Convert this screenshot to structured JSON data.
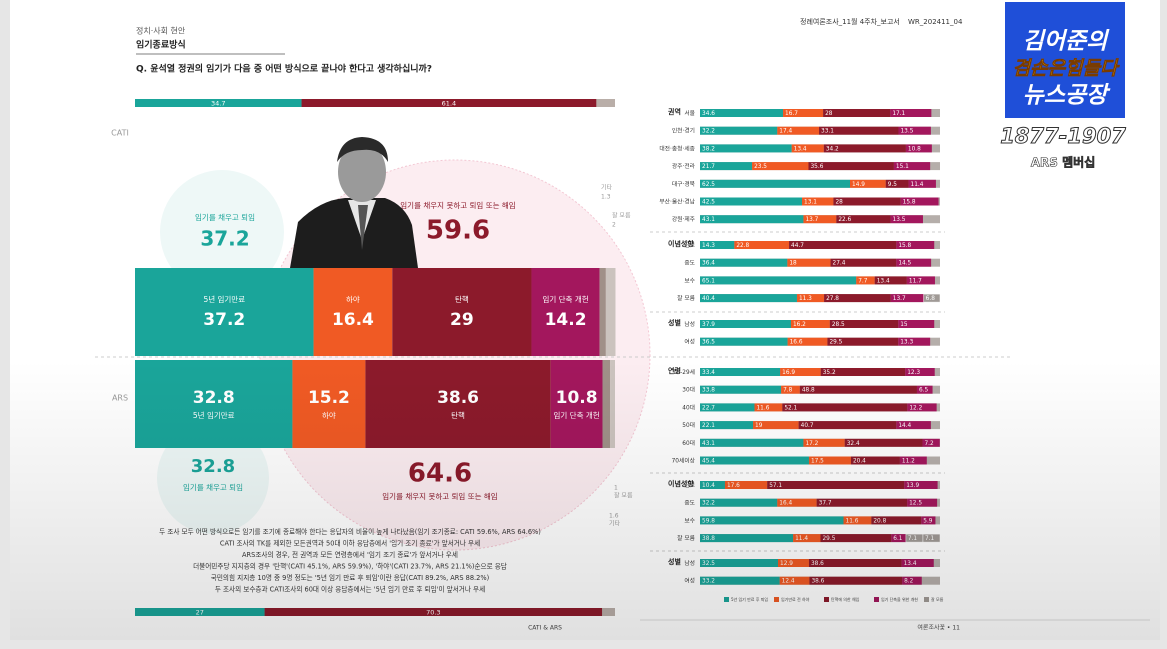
{
  "header": {
    "section": "정치·사회 현안",
    "topic": "임기종료방식",
    "question": "Q. 윤석열 정권의 임기가 다음 중 어떤 방식으로 끝나야 한다고 생각하십니까?",
    "report": "정례여론조사_11월 4주차_보고서",
    "code": "WR_202411_04"
  },
  "logo": {
    "line1": "김어준의",
    "line2": "겸손은힘들다",
    "line3": "뉴스공장",
    "phone": "1877-1907",
    "caption": "ARS 멤버십"
  },
  "chart_data": [
    {
      "type": "stacked-bar",
      "colors": [
        "#1aa59a",
        "#f05a24",
        "#8c1a2b",
        "#a3175d",
        "#a09088",
        "#cbc3be"
      ],
      "reference_bars": [
        {
          "values": [
            34.7,
            61.4
          ],
          "colors": [
            "#1aa59a",
            "#8c1a2b"
          ]
        },
        {
          "values": [
            27.0,
            70.3
          ],
          "colors": [
            "#1aa59a",
            "#8c1a2b"
          ]
        }
      ],
      "surveys": [
        {
          "name": "CATI",
          "categories": [
            "5년 임기만료",
            "하야",
            "탄핵",
            "임기 단축 개헌",
            "기타",
            "잘 모름"
          ],
          "values": [
            37.2,
            16.4,
            29.0,
            14.2,
            1.3,
            2.0
          ],
          "summary": [
            {
              "label": "임기를 채우고 퇴임",
              "value": 37.2
            },
            {
              "label": "임기를 채우지 못하고 퇴임 또는 해임",
              "value": 59.6
            }
          ]
        },
        {
          "name": "ARS",
          "categories": [
            "5년 임기만료",
            "하야",
            "탄핵",
            "임기 단축 개헌",
            "기타",
            "잘 모름"
          ],
          "values": [
            32.8,
            15.2,
            38.6,
            10.8,
            1.6,
            1.0
          ],
          "summary": [
            {
              "label": "임기를 채우고 퇴임",
              "value": 32.8
            },
            {
              "label": "임기를 채우지 못하고 퇴임 또는 해임",
              "value": 64.6
            }
          ]
        }
      ]
    },
    {
      "type": "grouped-stacked-bar",
      "series": [
        {
          "name": "5년 임기 만료 후 퇴임",
          "color": "#1aa59a"
        },
        {
          "name": "임기만료 전 하야",
          "color": "#f05a24"
        },
        {
          "name": "탄핵에 의한 해임",
          "color": "#8c1a2b"
        },
        {
          "name": "임기 단축을 위한 개헌",
          "color": "#a3175d"
        },
        {
          "name": "잘 모름",
          "color": "#a09a96"
        }
      ],
      "groups": [
        {
          "name": "권역",
          "rows": [
            {
              "label": "서울",
              "values": [
                34.6,
                16.7,
                28.0,
                17.1
              ]
            },
            {
              "label": "인천·경기",
              "values": [
                32.2,
                17.4,
                33.1,
                13.5
              ]
            },
            {
              "label": "대전·충청·세종",
              "values": [
                38.2,
                13.4,
                34.2,
                10.8
              ]
            },
            {
              "label": "광주·전라",
              "values": [
                21.7,
                23.5,
                35.6,
                15.1
              ]
            },
            {
              "label": "대구·경북",
              "values": [
                62.5,
                14.9,
                9.5,
                11.4
              ]
            },
            {
              "label": "부산·울산·경남",
              "values": [
                42.5,
                13.1,
                28.0,
                15.8
              ]
            },
            {
              "label": "강원·제주",
              "values": [
                43.1,
                13.7,
                22.6,
                13.5
              ]
            }
          ]
        },
        {
          "name": "이념성향",
          "rows": [
            {
              "label": "진보",
              "values": [
                14.3,
                22.8,
                44.7,
                15.8
              ]
            },
            {
              "label": "중도",
              "values": [
                36.4,
                18.0,
                27.4,
                14.5
              ]
            },
            {
              "label": "보수",
              "values": [
                65.1,
                7.7,
                13.4,
                11.7
              ]
            },
            {
              "label": "잘 모름",
              "values": [
                40.4,
                11.3,
                27.8,
                13.7
              ],
              "extra": [
                6.8
              ]
            }
          ]
        },
        {
          "name": "성별",
          "rows": [
            {
              "label": "남성",
              "values": [
                37.9,
                16.2,
                28.5,
                15.0
              ]
            },
            {
              "label": "여성",
              "values": [
                36.5,
                16.6,
                29.5,
                13.3
              ]
            }
          ]
        },
        {
          "name": "연령",
          "rows": [
            {
              "label": "18-29세",
              "values": [
                33.4,
                16.9,
                35.2,
                12.3
              ]
            },
            {
              "label": "30대",
              "values": [
                33.8,
                7.8,
                48.8,
                6.5
              ]
            },
            {
              "label": "40대",
              "values": [
                22.7,
                11.6,
                52.1,
                12.2
              ]
            },
            {
              "label": "50대",
              "values": [
                22.1,
                19.0,
                40.7,
                14.4
              ]
            },
            {
              "label": "60대",
              "values": [
                43.1,
                17.2,
                32.4,
                7.2
              ]
            },
            {
              "label": "70세이상",
              "values": [
                45.4,
                17.5,
                20.4,
                11.2
              ]
            }
          ]
        },
        {
          "name": "이념성향",
          "rows": [
            {
              "label": "진보",
              "values": [
                10.4,
                17.6,
                57.1,
                13.9
              ]
            },
            {
              "label": "중도",
              "values": [
                32.2,
                16.4,
                37.7,
                12.5
              ]
            },
            {
              "label": "보수",
              "values": [
                59.8,
                11.6,
                20.8,
                5.9
              ]
            },
            {
              "label": "잘 모름",
              "values": [
                38.8,
                11.4,
                29.5,
                6.1
              ],
              "extra": [
                7.1,
                7.1
              ]
            }
          ]
        },
        {
          "name": "성별",
          "rows": [
            {
              "label": "남성",
              "values": [
                32.5,
                12.9,
                38.6,
                13.4
              ]
            },
            {
              "label": "여성",
              "values": [
                33.2,
                12.4,
                38.6,
                8.2
              ]
            }
          ]
        }
      ]
    }
  ],
  "notes": [
    "두 조사 모두 어떤 방식으로든 임기를 조기에 종료해야 한다는 응답자의 비율이 높게 나타났음(임기 조기종료: CATI 59.6%, ARS 64.6%)",
    "CATI 조사의 TK를 제외한 모든권역과 50대 이하 응답층에서 '임기 조기 종료'가 앞서거나 우세",
    "ARS조사의 경우, 전 권역과 모든 연령층에서 '임기 조기 종료'가 앞서거나 우세",
    "더불어민주당 지지층의 경우 '탄핵'(CATI 45.1%, ARS 59.9%), '하야'(CATI 23.7%, ARS 21.1%)순으로 응답",
    "국민의힘 지지층 10명 중 9명 정도는 '5년 임기 만료 후 퇴임'이란 응답(CATI 89.2%, ARS 88.2%)",
    "두 조사의 보수층과 CATI조사의 60대 이상 응답층에서는 '5년 임기 만료 후 퇴임'이 앞서거나 우세"
  ],
  "footer": {
    "center": "CATI & ARS",
    "page": "여론조사꽃 • 11"
  }
}
